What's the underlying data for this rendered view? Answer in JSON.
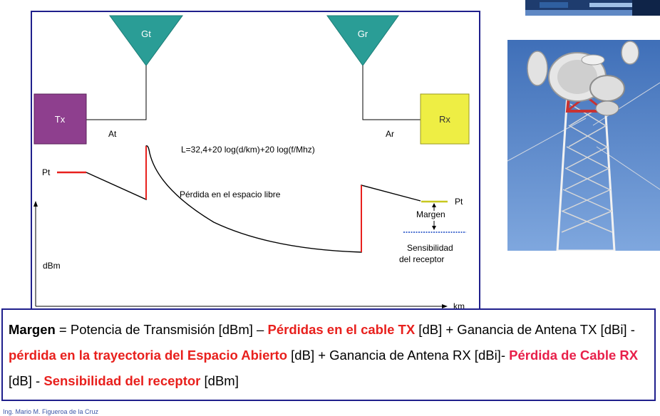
{
  "diagram": {
    "labels": {
      "gt": "Gt",
      "gr": "Gr",
      "tx": "Tx",
      "rx": "Rx",
      "at": "At",
      "ar": "Ar",
      "pt_left": "Pt",
      "pt_right": "Pt",
      "formula": "L=32,4+20 log(d/km)+20 log(f/Mhz)",
      "free_space_loss": "Pérdida en el espacio libre",
      "margen": "Margen",
      "sens_line1": "Sensibilidad",
      "sens_line2": "del receptor",
      "y_axis": "dBm",
      "x_axis": "km"
    },
    "colors": {
      "antenna": "#2a9d96",
      "tx_box": "#8e3f8e",
      "rx_box": "#eeee44",
      "loss_line": "#e8201d",
      "pt_right_line": "#c8c820",
      "sensitivity_line": "#4a6fd0",
      "frame": "#1f1f8c"
    }
  },
  "formula": {
    "t1": "Margen",
    "t2": " = Potencia de Transmisión [dBm] – ",
    "t3": "Pérdidas en el cable TX",
    "t4": " [dB] + Ganancia de Antena TX  [dBi] - ",
    "t5": "pérdida en la trayectoria del Espacio Abierto",
    "t6": " [dB] + Ganancia de Antena RX [dBi]- ",
    "t7": "Pérdida de Cable RX",
    "t8": " [dB] -  ",
    "t9": "Sensibilidad del receptor",
    "t10": " [dBm]"
  },
  "footer": "Ing. Mario M. Figueroa de la Cruz"
}
